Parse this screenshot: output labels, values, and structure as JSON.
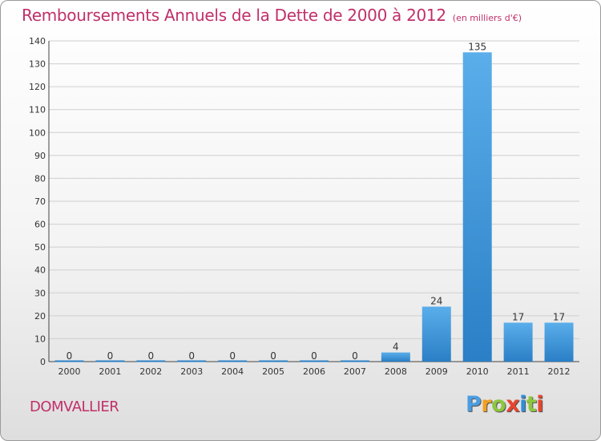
{
  "header": {
    "title": "Remboursements Annuels de la Dette de 2000 à 2012",
    "unit": "(en milliers d'€)"
  },
  "footer": {
    "commune": "DOMVALLIER",
    "logo": {
      "p": "P",
      "r": "r",
      "o": "o",
      "x": "x",
      "i1": "i",
      "t": "t",
      "i2": "i"
    }
  },
  "colors": {
    "title": "#c0306a",
    "bar_light": "#5aaeea",
    "bar_dark": "#2a7fc6",
    "grid": "#cfcfcf"
  },
  "chart_data": {
    "type": "bar",
    "title": "Remboursements Annuels de la Dette de 2000 à 2012",
    "subtitle": "(en milliers d'€)",
    "xlabel": "",
    "ylabel": "",
    "categories": [
      "2000",
      "2001",
      "2002",
      "2003",
      "2004",
      "2005",
      "2006",
      "2007",
      "2008",
      "2009",
      "2010",
      "2011",
      "2012"
    ],
    "values": [
      0,
      0,
      0,
      0,
      0,
      0,
      0,
      0,
      4,
      24,
      135,
      17,
      17
    ],
    "value_labels": [
      "0",
      "0",
      "0",
      "0",
      "0",
      "0",
      "0",
      "0",
      "4",
      "24",
      "135",
      "17",
      "17"
    ],
    "ylim": [
      0,
      140
    ],
    "yticks": [
      "0",
      "10",
      "20",
      "30",
      "40",
      "50",
      "60",
      "70",
      "80",
      "90",
      "100",
      "110",
      "120",
      "130",
      "140"
    ],
    "grid": true,
    "legend": "none"
  }
}
